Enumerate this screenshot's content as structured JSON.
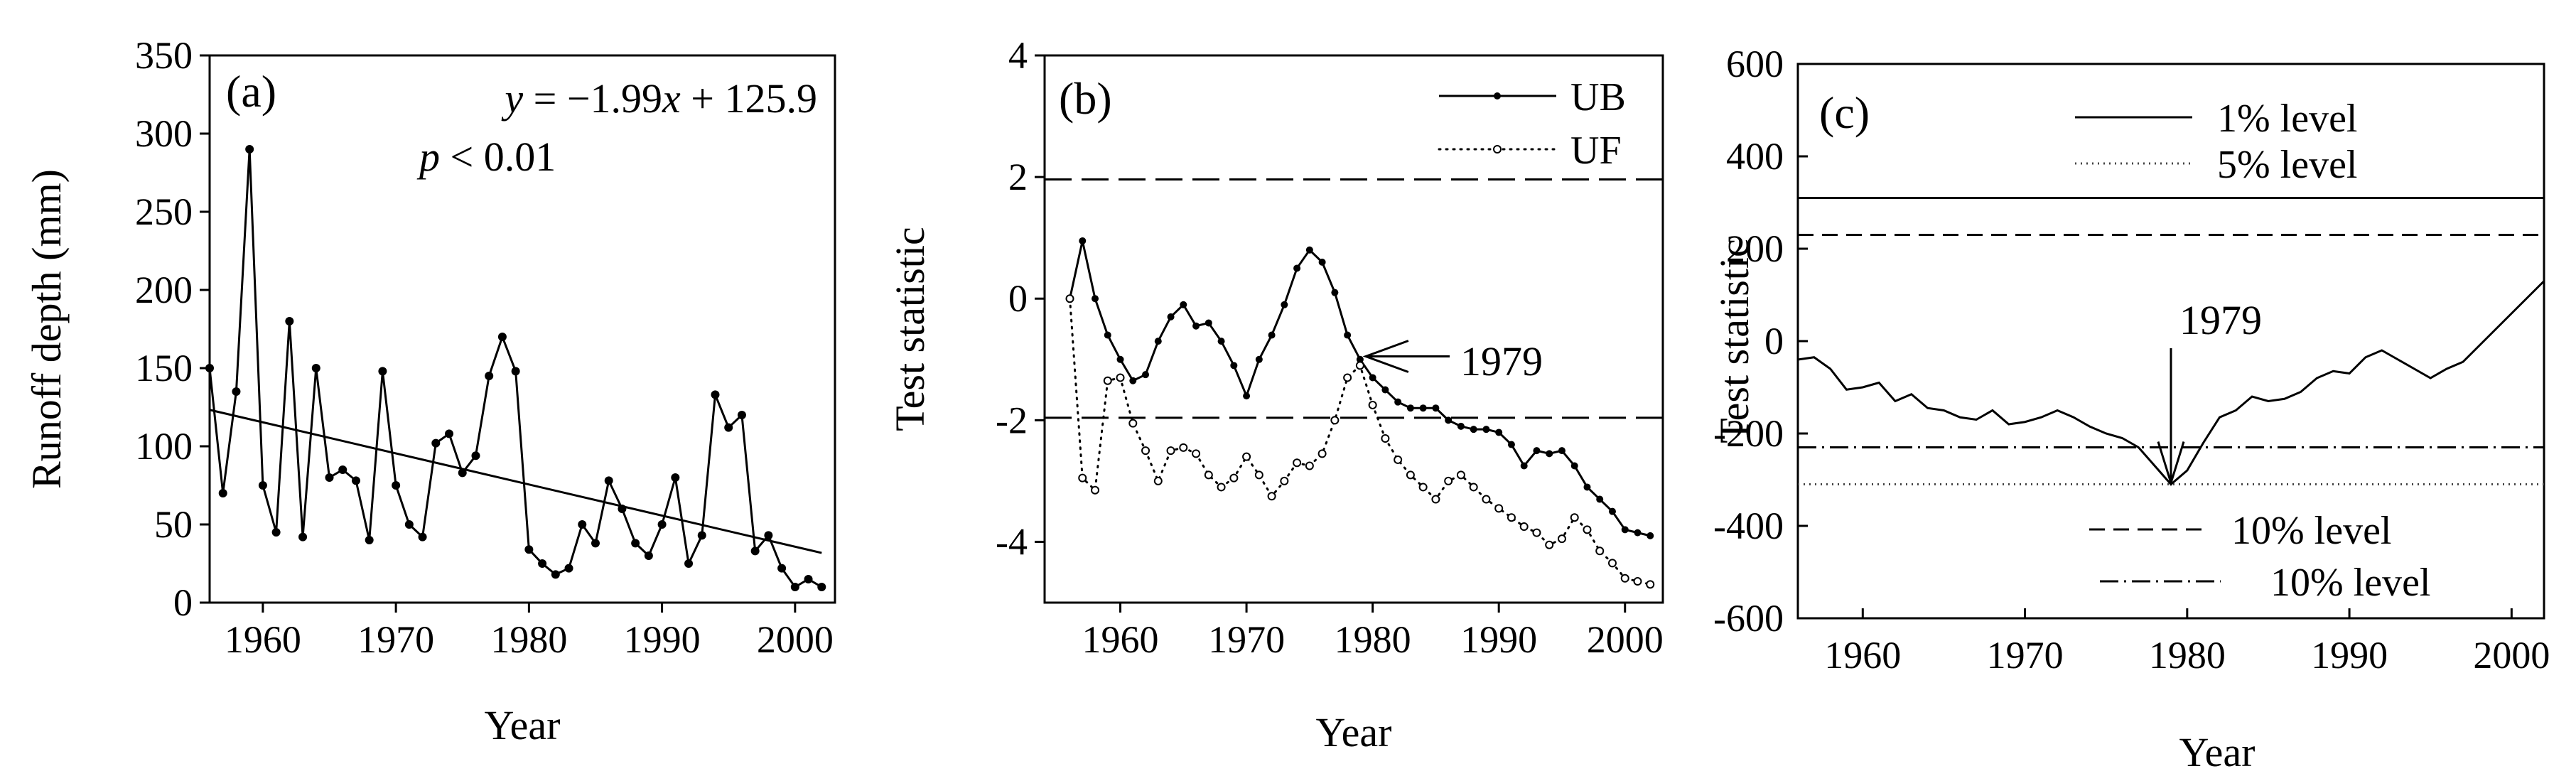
{
  "chart_data": [
    {
      "panel_label": "(a)",
      "type": "line",
      "xlabel": "Year",
      "ylabel": "Runoff depth (mm)",
      "xlim": [
        1956,
        2003
      ],
      "ylim": [
        0,
        350
      ],
      "xticks": [
        1960,
        1970,
        1980,
        1990,
        2000
      ],
      "yticks": [
        0,
        50,
        100,
        150,
        200,
        250,
        300,
        350
      ],
      "annotation": {
        "line1_parts": [
          "y",
          " = −1.99",
          "x",
          " + 125.9"
        ],
        "line2_parts": [
          "p",
          " < 0.01"
        ]
      },
      "series": [
        {
          "x": [
            1956,
            1957,
            1958,
            1959,
            1960,
            1961,
            1962,
            1963,
            1964,
            1965,
            1966,
            1967,
            1968,
            1969,
            1970,
            1971,
            1972,
            1973,
            1974,
            1975,
            1976,
            1977,
            1978,
            1979,
            1980,
            1981,
            1982,
            1983,
            1984,
            1985,
            1986,
            1987,
            1988,
            1989,
            1990,
            1991,
            1992,
            1993,
            1994,
            1995,
            1996,
            1997,
            1998,
            1999,
            2000,
            2001,
            2002
          ],
          "values": [
            150,
            70,
            135,
            290,
            75,
            45,
            180,
            42,
            150,
            80,
            85,
            78,
            40,
            148,
            75,
            50,
            42,
            102,
            108,
            83,
            94,
            145,
            170,
            148,
            34,
            25,
            18,
            22,
            50,
            38,
            78,
            60,
            38,
            30,
            50,
            80,
            25,
            43,
            133,
            112,
            120,
            33,
            43,
            22,
            10,
            15,
            10
          ]
        },
        {
          "kind": "trend",
          "x": [
            1956,
            2002
          ],
          "values": [
            123.3,
            31.8
          ]
        }
      ]
    },
    {
      "panel_label": "(b)",
      "type": "line",
      "xlabel": "Year",
      "ylabel": "Test statistic",
      "xlim": [
        1954,
        2003
      ],
      "ylim": [
        -5,
        4
      ],
      "xticks": [
        1960,
        1970,
        1980,
        1990,
        2000
      ],
      "yticks": [
        -4,
        -2,
        0,
        2,
        4
      ],
      "reference_lines": [
        1.96,
        -1.96
      ],
      "annotation": "1979",
      "annotation_point": [
        1979,
        -0.95
      ],
      "legend": [
        "UB",
        "UF"
      ],
      "series": [
        {
          "name": "UB",
          "x": [
            1956,
            1957,
            1958,
            1959,
            1960,
            1961,
            1962,
            1963,
            1964,
            1965,
            1966,
            1967,
            1968,
            1969,
            1970,
            1971,
            1972,
            1973,
            1974,
            1975,
            1976,
            1977,
            1978,
            1979,
            1980,
            1981,
            1982,
            1983,
            1984,
            1985,
            1986,
            1987,
            1988,
            1989,
            1990,
            1991,
            1992,
            1993,
            1994,
            1995,
            1996,
            1997,
            1998,
            1999,
            2000,
            2001,
            2002
          ],
          "values": [
            0,
            0.95,
            0,
            -0.6,
            -1,
            -1.35,
            -1.25,
            -0.7,
            -0.3,
            -0.1,
            -0.45,
            -0.4,
            -0.7,
            -1.1,
            -1.6,
            -1,
            -0.6,
            -0.1,
            0.5,
            0.8,
            0.6,
            0.1,
            -0.6,
            -1,
            -1.3,
            -1.5,
            -1.7,
            -1.8,
            -1.8,
            -1.8,
            -2,
            -2.1,
            -2.15,
            -2.15,
            -2.2,
            -2.4,
            -2.75,
            -2.5,
            -2.55,
            -2.5,
            -2.75,
            -3.1,
            -3.3,
            -3.5,
            -3.8,
            -3.85,
            -3.9
          ]
        },
        {
          "name": "UF",
          "x": [
            1956,
            1957,
            1958,
            1959,
            1960,
            1961,
            1962,
            1963,
            1964,
            1965,
            1966,
            1967,
            1968,
            1969,
            1970,
            1971,
            1972,
            1973,
            1974,
            1975,
            1976,
            1977,
            1978,
            1979,
            1980,
            1981,
            1982,
            1983,
            1984,
            1985,
            1986,
            1987,
            1988,
            1989,
            1990,
            1991,
            1992,
            1993,
            1994,
            1995,
            1996,
            1997,
            1998,
            1999,
            2000,
            2001,
            2002
          ],
          "values": [
            0,
            -2.95,
            -3.15,
            -1.35,
            -1.3,
            -2.05,
            -2.5,
            -3,
            -2.5,
            -2.45,
            -2.55,
            -2.9,
            -3.1,
            -2.95,
            -2.6,
            -2.9,
            -3.25,
            -3,
            -2.7,
            -2.75,
            -2.55,
            -2,
            -1.3,
            -1.1,
            -1.75,
            -2.3,
            -2.65,
            -2.9,
            -3.1,
            -3.3,
            -3,
            -2.9,
            -3.1,
            -3.3,
            -3.45,
            -3.6,
            -3.75,
            -3.85,
            -4.05,
            -3.95,
            -3.6,
            -3.8,
            -4.15,
            -4.35,
            -4.6,
            -4.65,
            -4.7
          ]
        }
      ]
    },
    {
      "panel_label": "(c)",
      "type": "line",
      "xlabel": "Year",
      "ylabel": "Test statistic",
      "xlim": [
        1956,
        2002
      ],
      "ylim": [
        -600,
        600
      ],
      "xticks": [
        1960,
        1970,
        1980,
        1990,
        2000
      ],
      "yticks": [
        -600,
        -400,
        -200,
        0,
        200,
        400,
        600
      ],
      "annotation": "1979",
      "annotation_point": [
        1979,
        -310
      ],
      "legend": [
        "1% level",
        "5% level",
        "10% level",
        "10% level"
      ],
      "reference_lines": [
        {
          "style": "solid",
          "value": 310
        },
        {
          "style": "dashed",
          "value": 230
        },
        {
          "style": "dashdot",
          "value": -230
        },
        {
          "style": "dotted",
          "value": -310
        }
      ],
      "series": [
        {
          "x": [
            1956,
            1957,
            1958,
            1959,
            1960,
            1961,
            1962,
            1963,
            1964,
            1965,
            1966,
            1967,
            1968,
            1969,
            1970,
            1971,
            1972,
            1973,
            1974,
            1975,
            1976,
            1977,
            1978,
            1979,
            1980,
            1981,
            1982,
            1983,
            1984,
            1985,
            1986,
            1987,
            1988,
            1989,
            1990,
            1991,
            1992,
            1993,
            1994,
            1995,
            1996,
            1997,
            1998,
            1999,
            2000,
            2001,
            2002
          ],
          "values": [
            -40,
            -35,
            -60,
            -105,
            -100,
            -90,
            -130,
            -115,
            -145,
            -150,
            -165,
            -170,
            -150,
            -180,
            -175,
            -165,
            -150,
            -165,
            -185,
            -200,
            -210,
            -230,
            -270,
            -310,
            -280,
            -220,
            -165,
            -150,
            -120,
            -130,
            -125,
            -110,
            -80,
            -65,
            -70,
            -35,
            -20,
            -40,
            -60,
            -80,
            -60,
            -45,
            -10,
            25,
            60,
            95,
            130
          ]
        }
      ]
    }
  ]
}
